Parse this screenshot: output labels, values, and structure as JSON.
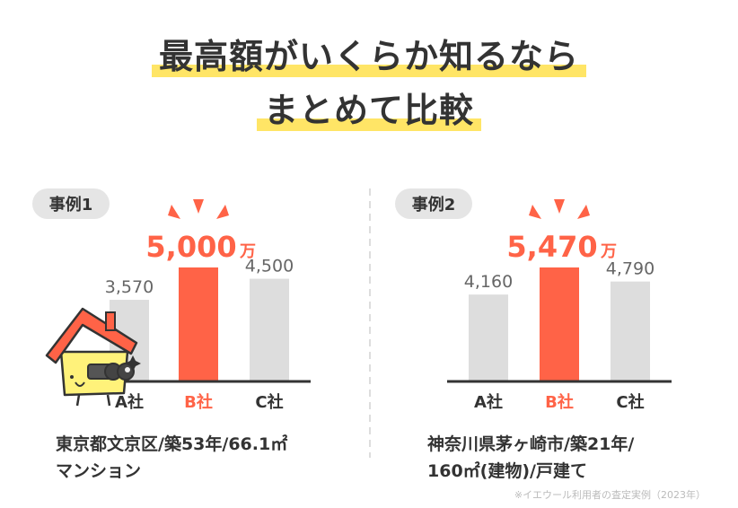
{
  "headline": {
    "line1": "最高額がいくらか知るなら",
    "line2": "まとめて比較"
  },
  "colors": {
    "highlight": "#ffe566",
    "accent": "#ff6347",
    "bar_gray": "#dddddd",
    "text": "#333333",
    "value_gray": "#666666",
    "badge_bg": "#e5e5e5"
  },
  "chart_data": [
    {
      "type": "bar",
      "badge": "事例1",
      "categories": [
        "A社",
        "B社",
        "C社"
      ],
      "values": [
        3570,
        5000,
        4500
      ],
      "value_labels": [
        "3,570",
        "5,000",
        "4,500"
      ],
      "unit": "万",
      "highlight_index": 1,
      "ylim": [
        0,
        5000
      ],
      "grid": false,
      "caption_lines": [
        "東京都文京区/築53年/66.1㎡",
        "マンション"
      ]
    },
    {
      "type": "bar",
      "badge": "事例2",
      "categories": [
        "A社",
        "B社",
        "C社"
      ],
      "values": [
        4160,
        5470,
        4790
      ],
      "value_labels": [
        "4,160",
        "5,470",
        "4,790"
      ],
      "unit": "万",
      "highlight_index": 1,
      "ylim": [
        0,
        5470
      ],
      "grid": false,
      "caption_lines": [
        "神奈川県茅ヶ崎市/築21年/",
        "160㎡(建物)/戸建て"
      ]
    }
  ],
  "note": "※イエウール利用者の査定実例（2023年）",
  "mascot_icon": "house-binoculars-mascot-icon"
}
